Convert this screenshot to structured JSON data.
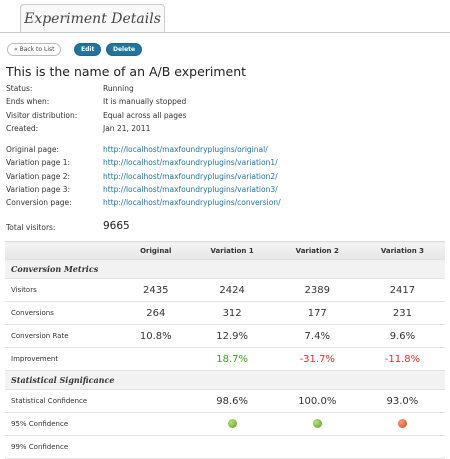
{
  "tab": "Experiment Details",
  "buttons": [
    "« Back to List",
    "Edit",
    "Delete"
  ],
  "title": "This is the name of an A/B experiment",
  "details": [
    {
      "label": "Status:",
      "value": "Running"
    },
    {
      "label": "Ends when:",
      "value": "It is manually stopped"
    },
    {
      "label": "Visitor distribution:",
      "value": "Equal across all pages"
    },
    {
      "label": "Created:",
      "value": "Jan 21, 2011"
    }
  ],
  "pages": [
    {
      "label": "Original page:",
      "url": "http://localhost/maxfoundryplugins/original/"
    },
    {
      "label": "Variation page 1:",
      "url": "http://localhost/maxfoundryplugins/variation1/"
    },
    {
      "label": "Variation page 2:",
      "url": "http://localhost/maxfoundryplugins/variation2/"
    },
    {
      "label": "Variation page 3:",
      "url": "http://localhost/maxfoundryplugins/variation3/"
    },
    {
      "label": "Conversion page:",
      "url": "http://localhost/maxfoundryplugins/conversion/"
    }
  ],
  "total": {
    "label": "Total visitors:",
    "value": 9665
  },
  "table": {
    "headers": [
      "Original",
      "Variation 1",
      "Variation 2",
      "Variation 3"
    ],
    "sections": [
      {
        "title": "Conversion Metrics",
        "rows": [
          {
            "label": "Visitors",
            "cells": [
              2435,
              2424,
              2389,
              2417
            ]
          },
          {
            "label": "Conversions",
            "cells": [
              264,
              312,
              177,
              231
            ]
          },
          {
            "label": "Conversion Rate",
            "cells": [
              "10.8%",
              "12.9%",
              "7.4%",
              "9.6%"
            ]
          },
          {
            "label": "Improvement",
            "cells": [
              null,
              "18.7%",
              "-31.7%",
              "-11.8%"
            ]
          }
        ]
      },
      {
        "title": "Statistical Significance",
        "rows": [
          {
            "label": "Statistical Confidence",
            "cells": [
              null,
              "98.6%",
              "100.0%",
              "93.0%"
            ]
          },
          {
            "label": "95% Confidence"
          },
          {
            "label": "99% Confidence"
          }
        ]
      }
    ]
  }
}
